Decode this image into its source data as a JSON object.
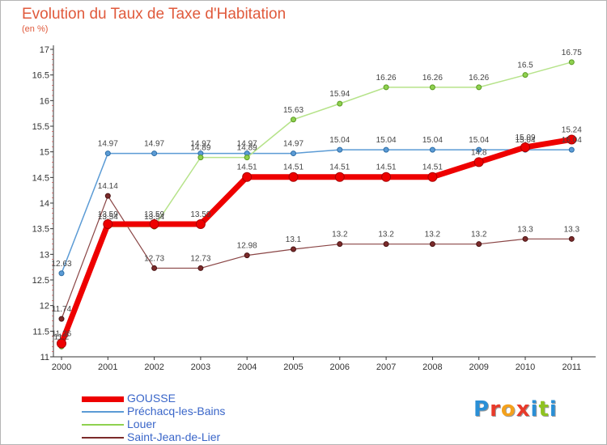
{
  "title": "Evolution du Taux de Taxe d'Habitation",
  "unit": "(en %)",
  "logo": {
    "text": "Proxiti",
    "colors": [
      "#2a8fd6",
      "#e83a2a",
      "#f4a11c",
      "#e83a2a",
      "#2a8fd6",
      "#8fc31f",
      "#2a8fd6"
    ]
  },
  "chart_data": {
    "type": "line",
    "title": "Evolution du Taux de Taxe d'Habitation",
    "ylabel": "(en %)",
    "xlabel": "",
    "x": [
      "2000",
      "2001",
      "2002",
      "2003",
      "2004",
      "2005",
      "2006",
      "2007",
      "2008",
      "2009",
      "2010",
      "2011"
    ],
    "ylim": [
      11,
      17
    ],
    "yticks": [
      "11",
      "11.5",
      "12",
      "12.5",
      "13",
      "13.5",
      "14",
      "14.5",
      "15",
      "15.5",
      "16",
      "16.5",
      "17"
    ],
    "grid": false,
    "legend_position": "bottom-left",
    "series": [
      {
        "name": "GOUSSE",
        "color": "#ee0000",
        "values": [
          11.26,
          13.59,
          13.59,
          13.59,
          14.51,
          14.51,
          14.51,
          14.51,
          14.51,
          14.8,
          15.09,
          15.24
        ],
        "labels": [
          "11.26",
          "13.59",
          "13.59",
          "13.59",
          "14.51",
          "14.51",
          "14.51",
          "14.51",
          "14.51",
          "14.8",
          "15.09",
          "15.24"
        ]
      },
      {
        "name": "Préchacq-les-Bains",
        "color": "#5b9bd5",
        "values": [
          12.63,
          14.97,
          14.97,
          14.97,
          14.97,
          14.97,
          15.04,
          15.04,
          15.04,
          15.04,
          15.04,
          15.04
        ],
        "labels": [
          "12.63",
          "14.97",
          "14.97",
          "14.97",
          "14.97",
          "14.97",
          "15.04",
          "15.04",
          "15.04",
          "15.04",
          "15.04",
          "15.04"
        ]
      },
      {
        "name": "Louer",
        "color": "#8fd14f",
        "values": [
          11.2,
          13.54,
          13.54,
          14.89,
          14.89,
          15.63,
          15.94,
          16.26,
          16.26,
          16.26,
          16.5,
          16.75
        ],
        "labels": [
          "11.2",
          "13.54",
          "13.54",
          "14.89",
          "14.89",
          "15.63",
          "15.94",
          "16.26",
          "16.26",
          "16.26",
          "16.5",
          "16.75"
        ]
      },
      {
        "name": "Saint-Jean-de-Lier",
        "color": "#7b2a2a",
        "values": [
          11.74,
          14.14,
          12.73,
          12.73,
          12.98,
          13.1,
          13.2,
          13.2,
          13.2,
          13.2,
          13.3,
          13.3
        ],
        "labels": [
          "11.74",
          "14.14",
          "12.73",
          "12.73",
          "12.98",
          "13.1",
          "13.2",
          "13.2",
          "13.2",
          "13.2",
          "13.3",
          "13.3"
        ]
      }
    ]
  }
}
